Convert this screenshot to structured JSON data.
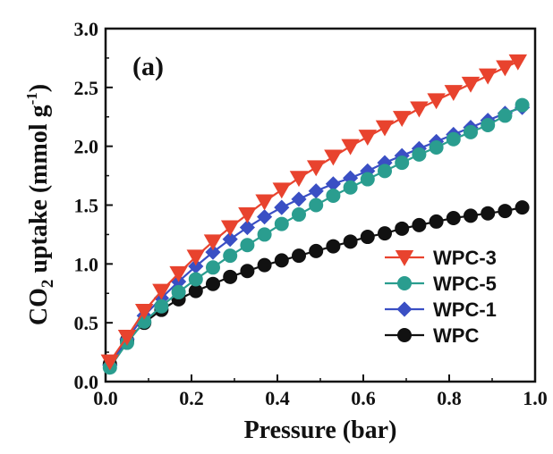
{
  "chart_data": {
    "type": "line",
    "panel_label": "(a)",
    "xlabel": "Pressure (bar)",
    "ylabel_parts": [
      "CO",
      "2",
      " uptake (mmol g",
      "-1",
      ")"
    ],
    "xlim": [
      0.0,
      1.0
    ],
    "ylim": [
      0.0,
      3.0
    ],
    "xticks": [
      0.0,
      0.2,
      0.4,
      0.6,
      0.8,
      1.0
    ],
    "xtick_labels": [
      "0.0",
      "0.2",
      "0.4",
      "0.6",
      "0.8",
      "1.0"
    ],
    "yticks": [
      0.0,
      0.5,
      1.0,
      1.5,
      2.0,
      2.5,
      3.0
    ],
    "ytick_labels": [
      "0.0",
      "0.5",
      "1.0",
      "1.5",
      "2.0",
      "2.5",
      "3.0"
    ],
    "legend_position": "bottom-right",
    "series": [
      {
        "name": "WPC-3",
        "color": "#e8432e",
        "marker": "triangle-down",
        "x": [
          0.01,
          0.05,
          0.09,
          0.13,
          0.17,
          0.21,
          0.25,
          0.29,
          0.33,
          0.37,
          0.41,
          0.45,
          0.49,
          0.53,
          0.57,
          0.61,
          0.65,
          0.69,
          0.73,
          0.77,
          0.81,
          0.85,
          0.89,
          0.93,
          0.96
        ],
        "y": [
          0.17,
          0.38,
          0.6,
          0.77,
          0.92,
          1.06,
          1.19,
          1.31,
          1.42,
          1.53,
          1.63,
          1.73,
          1.82,
          1.91,
          2.0,
          2.08,
          2.16,
          2.24,
          2.32,
          2.39,
          2.46,
          2.53,
          2.6,
          2.67,
          2.72
        ]
      },
      {
        "name": "WPC-5",
        "color": "#2a9d8f",
        "marker": "circle",
        "x": [
          0.01,
          0.05,
          0.09,
          0.13,
          0.17,
          0.21,
          0.25,
          0.29,
          0.33,
          0.37,
          0.41,
          0.45,
          0.49,
          0.53,
          0.57,
          0.61,
          0.65,
          0.69,
          0.73,
          0.77,
          0.81,
          0.85,
          0.89,
          0.93,
          0.97
        ],
        "y": [
          0.12,
          0.33,
          0.51,
          0.64,
          0.76,
          0.87,
          0.97,
          1.07,
          1.16,
          1.25,
          1.34,
          1.42,
          1.5,
          1.58,
          1.65,
          1.72,
          1.79,
          1.86,
          1.93,
          1.99,
          2.06,
          2.12,
          2.18,
          2.26,
          2.35
        ]
      },
      {
        "name": "WPC-1",
        "color": "#3a4fc4",
        "marker": "diamond",
        "x": [
          0.01,
          0.05,
          0.09,
          0.13,
          0.17,
          0.21,
          0.25,
          0.29,
          0.33,
          0.37,
          0.41,
          0.45,
          0.49,
          0.53,
          0.57,
          0.61,
          0.65,
          0.69,
          0.73,
          0.77,
          0.81,
          0.85,
          0.89,
          0.93,
          0.97
        ],
        "y": [
          0.14,
          0.36,
          0.56,
          0.71,
          0.85,
          0.98,
          1.1,
          1.21,
          1.31,
          1.4,
          1.48,
          1.55,
          1.62,
          1.68,
          1.73,
          1.79,
          1.86,
          1.92,
          1.98,
          2.04,
          2.1,
          2.16,
          2.22,
          2.28,
          2.33
        ]
      },
      {
        "name": "WPC",
        "color": "#111111",
        "marker": "circle",
        "x": [
          0.01,
          0.05,
          0.09,
          0.13,
          0.17,
          0.21,
          0.25,
          0.29,
          0.33,
          0.37,
          0.41,
          0.45,
          0.49,
          0.53,
          0.57,
          0.61,
          0.65,
          0.69,
          0.73,
          0.77,
          0.81,
          0.85,
          0.89,
          0.93,
          0.97
        ],
        "y": [
          0.15,
          0.35,
          0.5,
          0.61,
          0.7,
          0.77,
          0.83,
          0.89,
          0.94,
          0.99,
          1.03,
          1.07,
          1.11,
          1.15,
          1.19,
          1.23,
          1.26,
          1.3,
          1.33,
          1.36,
          1.39,
          1.41,
          1.43,
          1.45,
          1.48
        ]
      }
    ],
    "legend_order": [
      "WPC-3",
      "WPC-5",
      "WPC-1",
      "WPC"
    ]
  }
}
